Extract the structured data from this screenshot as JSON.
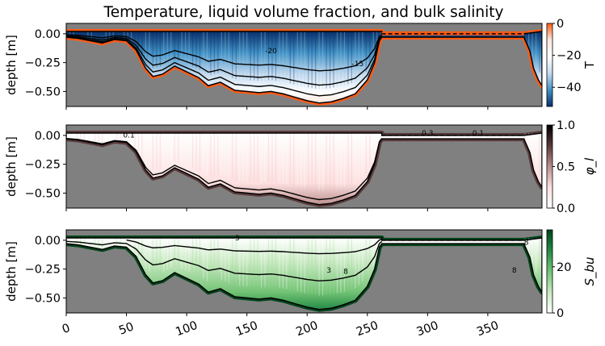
{
  "chart_data": {
    "type": "heatmap",
    "title": "Temperature, liquid volume fraction, and bulk salinity",
    "xlim": [
      0,
      395
    ],
    "x_ticks": [
      0,
      50,
      100,
      150,
      200,
      250,
      300,
      350
    ],
    "panels": [
      {
        "id": "temperature",
        "ylabel": "depth [m]",
        "ylim": [
          -0.63,
          0.09
        ],
        "y_ticks": [
          0.0,
          -0.25,
          -0.5
        ],
        "y_tick_labels": [
          "0.00",
          "−0.25",
          "−0.50"
        ],
        "colorbar": {
          "label": "T",
          "range": [
            -52,
            0
          ],
          "ticks": [
            0,
            -20,
            -40
          ],
          "tick_labels": [
            "0",
            "−20",
            "−40"
          ],
          "colors": [
            "#ff5a14",
            "#fde8dd",
            "#ffffff",
            "#c6dbef",
            "#4292c6",
            "#08306b"
          ]
        },
        "ice_bottom": [
          [
            0,
            -0.03
          ],
          [
            10,
            -0.04
          ],
          [
            20,
            -0.06
          ],
          [
            30,
            -0.08
          ],
          [
            40,
            -0.05
          ],
          [
            50,
            -0.06
          ],
          [
            58,
            -0.14
          ],
          [
            66,
            -0.3
          ],
          [
            72,
            -0.37
          ],
          [
            80,
            -0.35
          ],
          [
            90,
            -0.28
          ],
          [
            100,
            -0.33
          ],
          [
            110,
            -0.38
          ],
          [
            118,
            -0.45
          ],
          [
            128,
            -0.42
          ],
          [
            140,
            -0.49
          ],
          [
            150,
            -0.5
          ],
          [
            160,
            -0.51
          ],
          [
            170,
            -0.5
          ],
          [
            180,
            -0.52
          ],
          [
            190,
            -0.55
          ],
          [
            200,
            -0.58
          ],
          [
            210,
            -0.6
          ],
          [
            220,
            -0.59
          ],
          [
            230,
            -0.56
          ],
          [
            240,
            -0.52
          ],
          [
            250,
            -0.4
          ],
          [
            256,
            -0.25
          ],
          [
            260,
            -0.06
          ],
          [
            262,
            -0.03
          ],
          [
            380,
            -0.03
          ],
          [
            385,
            -0.15
          ],
          [
            388,
            -0.3
          ],
          [
            392,
            -0.4
          ],
          [
            395,
            -0.45
          ]
        ],
        "surface": 0.02,
        "contour_labels": [
          {
            "x": 170,
            "y": -0.17,
            "text": "-20"
          },
          {
            "x": 242,
            "y": -0.28,
            "text": "-15"
          }
        ]
      },
      {
        "id": "liquid_fraction",
        "ylabel": "depth [m]",
        "ylim": [
          -0.63,
          0.09
        ],
        "y_ticks": [
          0.0,
          -0.25,
          -0.5
        ],
        "y_tick_labels": [
          "0.00",
          "−0.25",
          "−0.50"
        ],
        "colorbar": {
          "label": "φ_l",
          "range": [
            0,
            1
          ],
          "ticks": [
            1.0,
            0.5,
            0.0
          ],
          "tick_labels": [
            "1.0",
            "0.5",
            "0.0"
          ],
          "colors": [
            "#ffffff",
            "#fde0e0",
            "#bc8f8f",
            "#5a3a3a",
            "#000000"
          ]
        },
        "contour_labels": [
          {
            "x": 52,
            "y": -0.02,
            "text": "0.1"
          },
          {
            "x": 300,
            "y": 0.0,
            "text": "0.3"
          },
          {
            "x": 342,
            "y": 0.0,
            "text": "0.1"
          }
        ]
      },
      {
        "id": "bulk_salinity",
        "ylabel": "depth [m]",
        "ylim": [
          -0.63,
          0.09
        ],
        "y_ticks": [
          0.0,
          -0.25,
          -0.5
        ],
        "y_tick_labels": [
          "0.00",
          "−0.25",
          "−0.50"
        ],
        "colorbar": {
          "label": "S_bu",
          "range": [
            0,
            36
          ],
          "ticks": [
            20,
            0
          ],
          "tick_labels": [
            "20",
            "0"
          ],
          "colors": [
            "#ffffff",
            "#c7e9c0",
            "#74c476",
            "#238b45",
            "#00441b"
          ]
        },
        "contour_labels": [
          {
            "x": 142,
            "y": 0.0,
            "text": "3"
          },
          {
            "x": 218,
            "y": -0.28,
            "text": "3"
          },
          {
            "x": 232,
            "y": -0.29,
            "text": "8"
          },
          {
            "x": 382,
            "y": -0.04,
            "text": "8"
          },
          {
            "x": 372,
            "y": -0.28,
            "text": "8"
          }
        ]
      }
    ]
  }
}
